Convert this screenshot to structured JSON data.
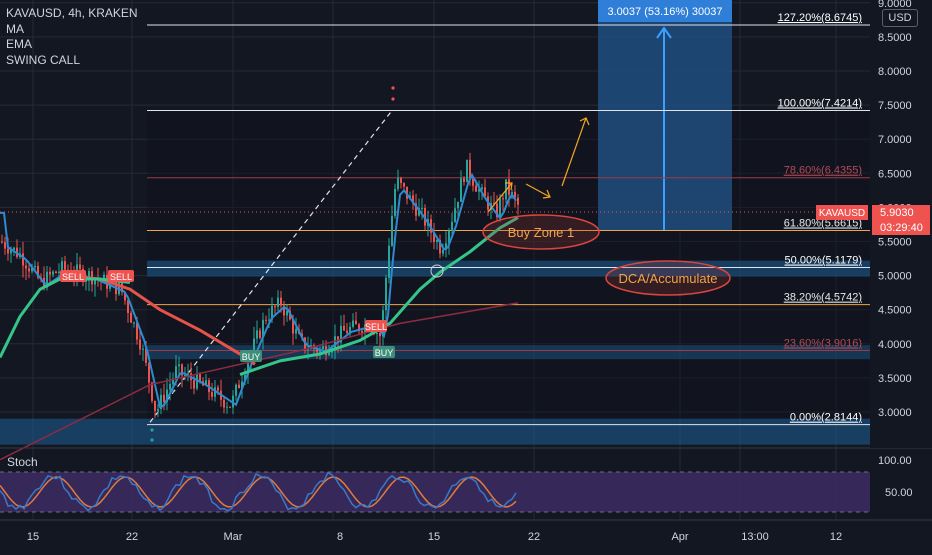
{
  "header": {
    "symbol_line": "KAVAUSD, 4h, KRAKEN",
    "indicators": [
      "MA",
      "EMA",
      "SWING CALL"
    ],
    "currency_badge": "USD",
    "stoch_label": "Stoch"
  },
  "colors": {
    "background": "#131722",
    "grid": "#262a36",
    "candle_up": "#26a69a",
    "candle_down": "#ef5350",
    "ema_line": "#2e8bd1",
    "ma_line": "#e5544b",
    "ma_long_line": "#8e2b43",
    "green_ma": "#35c58a",
    "fib_line": "#e0e3eb",
    "fib_orange": "#f0a54b",
    "fib_red": "#9e3a47",
    "zone_blue": "#1e5f97",
    "target_box": "#204e7f",
    "target_label": "#2f7ed8",
    "stoch_bg": "#3b2a5e",
    "stoch_k": "#3a78c8",
    "stoch_d": "#e07b3c",
    "price_tag": "#ef5350",
    "annotation_orange": "#f5a623",
    "ellipse": "#d9453f"
  },
  "price_axis": {
    "ticks": [
      "9.0000",
      "8.5000",
      "8.0000",
      "7.5000",
      "7.0000",
      "6.5000",
      "6.0000",
      "5.5000",
      "5.0000",
      "4.5000",
      "4.0000",
      "3.5000",
      "3.0000"
    ],
    "current_price": "5.9030",
    "countdown": "03:29:40",
    "symbol_tag": "KAVAUSD"
  },
  "stoch_axis": {
    "ticks": [
      "100.00",
      "50.00"
    ]
  },
  "time_axis": {
    "ticks": [
      "15",
      "22",
      "Mar",
      "8",
      "15",
      "22",
      "Apr",
      "13:00",
      "12"
    ]
  },
  "fib_levels": [
    {
      "label": "127.20%(8.6745)",
      "price": 8.6745
    },
    {
      "label": "100.00%(7.4214)",
      "price": 7.4214
    },
    {
      "label": "78.60%(6.4355)",
      "price": 6.4355
    },
    {
      "label": "61.80%(5.6615)",
      "price": 5.6615
    },
    {
      "label": "50.00%(5.1179)",
      "price": 5.1179
    },
    {
      "label": "38.20%(4.5742)",
      "price": 4.5742
    },
    {
      "label": "23.60%(3.9016)",
      "price": 3.9016
    },
    {
      "label": "0.00%(2.8144)",
      "price": 2.8144
    }
  ],
  "target_label": "3.0037 (53.16%) 30037",
  "annotations": {
    "buy_zone": "Buy Zone 1",
    "dca": "DCA/Accumulate"
  },
  "signals": {
    "sell": "SELL",
    "buy": "BUY"
  }
}
